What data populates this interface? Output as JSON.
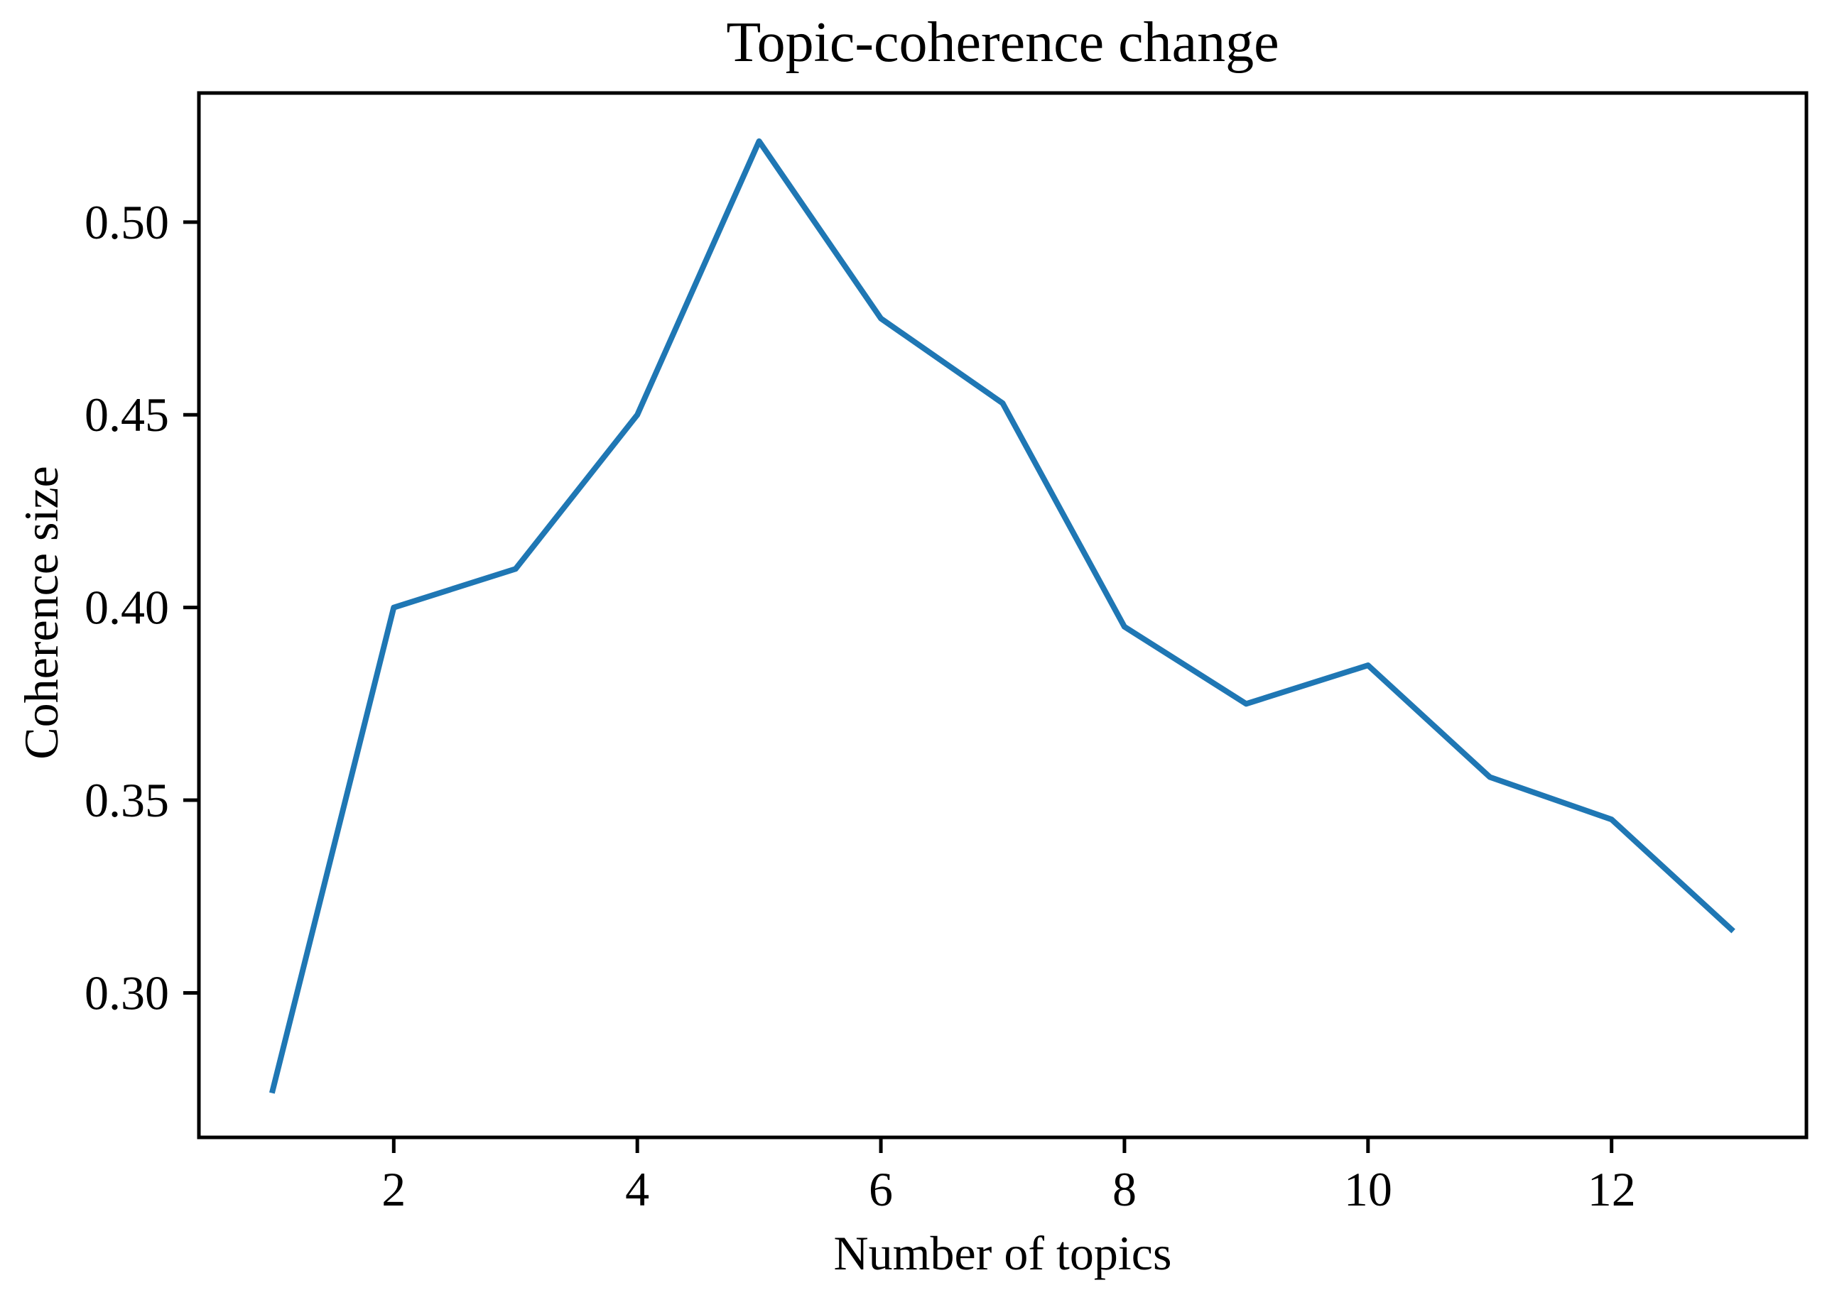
{
  "chart_data": {
    "type": "line",
    "title": "Topic-coherence change",
    "xlabel": "Number of topics",
    "ylabel": "Coherence size",
    "x": [
      1,
      2,
      3,
      4,
      5,
      6,
      7,
      8,
      9,
      10,
      11,
      12,
      13
    ],
    "y": [
      0.274,
      0.4,
      0.41,
      0.45,
      0.521,
      0.475,
      0.453,
      0.395,
      0.375,
      0.385,
      0.356,
      0.345,
      0.316
    ],
    "xlim": [
      0.4,
      13.6
    ],
    "ylim": [
      0.2625,
      0.5335
    ],
    "xticks": {
      "values": [
        2,
        4,
        6,
        8,
        10,
        12
      ],
      "labels": [
        "2",
        "4",
        "6",
        "8",
        "10",
        "12"
      ]
    },
    "yticks": {
      "values": [
        0.3,
        0.35,
        0.4,
        0.45,
        0.5
      ],
      "labels": [
        "0.30",
        "0.35",
        "0.40",
        "0.45",
        "0.50"
      ]
    },
    "grid": false,
    "legend": "none",
    "colors": {
      "line": "#1f77b4",
      "axis": "#000000",
      "text": "#000000",
      "background": "#ffffff"
    }
  }
}
